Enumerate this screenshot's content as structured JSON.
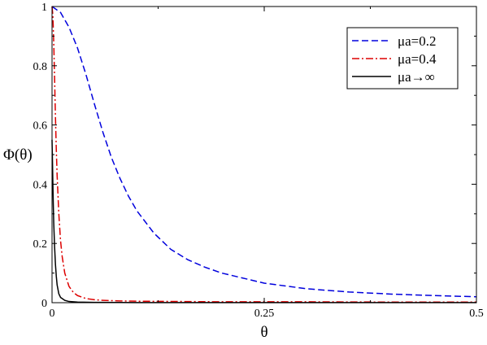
{
  "chart_data": {
    "type": "line",
    "xlabel": "θ",
    "ylabel": "Φ(θ)",
    "xlim": [
      0,
      0.5
    ],
    "ylim": [
      0,
      1
    ],
    "xticks": [
      {
        "value": 0,
        "label": "0"
      },
      {
        "value": 0.25,
        "label": "0.25"
      },
      {
        "value": 0.5,
        "label": "0.5"
      }
    ],
    "yticks": [
      {
        "value": 0,
        "label": "0"
      },
      {
        "value": 0.2,
        "label": "0.2"
      },
      {
        "value": 0.4,
        "label": "0.4"
      },
      {
        "value": 0.6,
        "label": "0.6"
      },
      {
        "value": 0.8,
        "label": "0.8"
      },
      {
        "value": 1,
        "label": "1"
      }
    ],
    "grid": false,
    "legend_position": "top-right",
    "series": [
      {
        "name": "μa=0.2",
        "color": "#0000dd",
        "style": "dashed",
        "x": [
          0,
          0.005,
          0.01,
          0.015,
          0.02,
          0.03,
          0.04,
          0.05,
          0.06,
          0.07,
          0.08,
          0.09,
          0.1,
          0.12,
          0.14,
          0.16,
          0.18,
          0.2,
          0.25,
          0.3,
          0.35,
          0.4,
          0.45,
          0.5
        ],
        "y": [
          1.0,
          0.99,
          0.98,
          0.955,
          0.93,
          0.86,
          0.77,
          0.67,
          0.575,
          0.49,
          0.42,
          0.36,
          0.31,
          0.235,
          0.18,
          0.145,
          0.12,
          0.1,
          0.066,
          0.047,
          0.036,
          0.029,
          0.024,
          0.02
        ]
      },
      {
        "name": "μa=0.4",
        "color": "#dd0000",
        "style": "dashdot",
        "x": [
          0,
          0.001,
          0.002,
          0.003,
          0.004,
          0.005,
          0.006,
          0.008,
          0.01,
          0.012,
          0.015,
          0.02,
          0.025,
          0.03,
          0.04,
          0.05,
          0.06,
          0.08,
          0.1,
          0.15,
          0.2,
          0.3,
          0.4,
          0.5
        ],
        "y": [
          1.0,
          0.97,
          0.88,
          0.76,
          0.63,
          0.52,
          0.43,
          0.3,
          0.21,
          0.155,
          0.1,
          0.055,
          0.035,
          0.024,
          0.014,
          0.01,
          0.008,
          0.006,
          0.005,
          0.004,
          0.003,
          0.003,
          0.002,
          0.002
        ]
      },
      {
        "name": "μa→∞",
        "color": "#000000",
        "style": "solid",
        "x": [
          0,
          0.0005,
          0.001,
          0.0015,
          0.002,
          0.003,
          0.004,
          0.005,
          0.006,
          0.008,
          0.01,
          0.015,
          0.02,
          0.03,
          0.05,
          0.1,
          0.2,
          0.3,
          0.4,
          0.5
        ],
        "y": [
          0.55,
          0.48,
          0.4,
          0.33,
          0.27,
          0.19,
          0.13,
          0.09,
          0.06,
          0.03,
          0.018,
          0.008,
          0.004,
          0.002,
          0.001,
          0.0005,
          0.0003,
          0.0002,
          0.0002,
          0.0002
        ]
      }
    ]
  }
}
